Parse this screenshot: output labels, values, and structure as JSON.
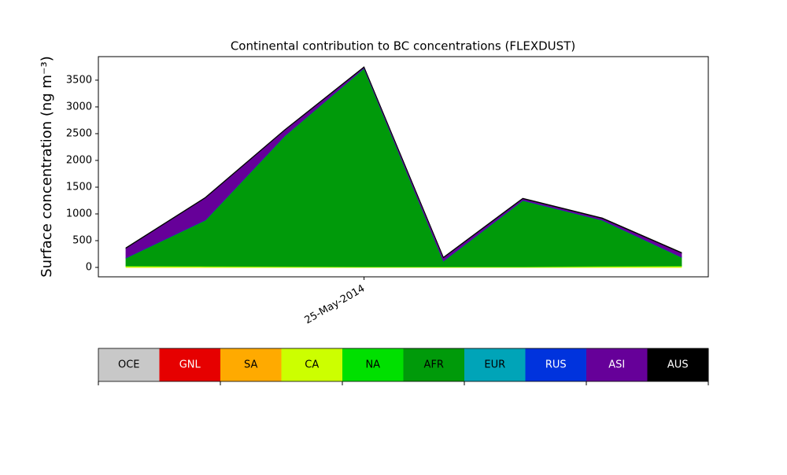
{
  "chart_data": {
    "type": "stacked-area",
    "title": "Continental contribution to BC concentrations (FLEXDUST)",
    "ylabel": "Surface concentration (ng m⁻³)",
    "categories": [
      null,
      null,
      null,
      "25-May-2014",
      null,
      null,
      null,
      null
    ],
    "ylim": [
      -176,
      3940
    ],
    "yticks": [
      0,
      500,
      1000,
      1500,
      2000,
      2500,
      3000,
      3500
    ],
    "series": [
      {
        "name": "OCE",
        "color": "#c8c8c8",
        "values": [
          0,
          0,
          0,
          0,
          0,
          0,
          0,
          0
        ]
      },
      {
        "name": "GNL",
        "color": "#e60000",
        "values": [
          0,
          0,
          0,
          0,
          0,
          0,
          0,
          0
        ]
      },
      {
        "name": "SA",
        "color": "#ffaa00",
        "values": [
          0,
          0,
          0,
          0,
          0,
          0,
          0,
          0
        ]
      },
      {
        "name": "CA",
        "color": "#ccff00",
        "values": [
          25,
          20,
          15,
          10,
          10,
          10,
          20,
          25
        ]
      },
      {
        "name": "NA",
        "color": "#00e000",
        "values": [
          5,
          5,
          5,
          5,
          5,
          5,
          5,
          5
        ]
      },
      {
        "name": "AFR",
        "color": "#009a0a",
        "values": [
          146,
          857,
          2436,
          3705,
          103,
          1235,
          857,
          160
        ]
      },
      {
        "name": "EUR",
        "color": "#00a4b8",
        "values": [
          0,
          0,
          0,
          0,
          0,
          0,
          0,
          0
        ]
      },
      {
        "name": "RUS",
        "color": "#0033dd",
        "values": [
          5,
          5,
          5,
          5,
          5,
          5,
          5,
          5
        ]
      },
      {
        "name": "ASI",
        "color": "#660099",
        "values": [
          177,
          412,
          103,
          15,
          58,
          29,
          29,
          74
        ]
      },
      {
        "name": "AUS",
        "color": "#000000",
        "values": [
          10,
          10,
          10,
          10,
          10,
          10,
          10,
          10
        ]
      }
    ]
  }
}
